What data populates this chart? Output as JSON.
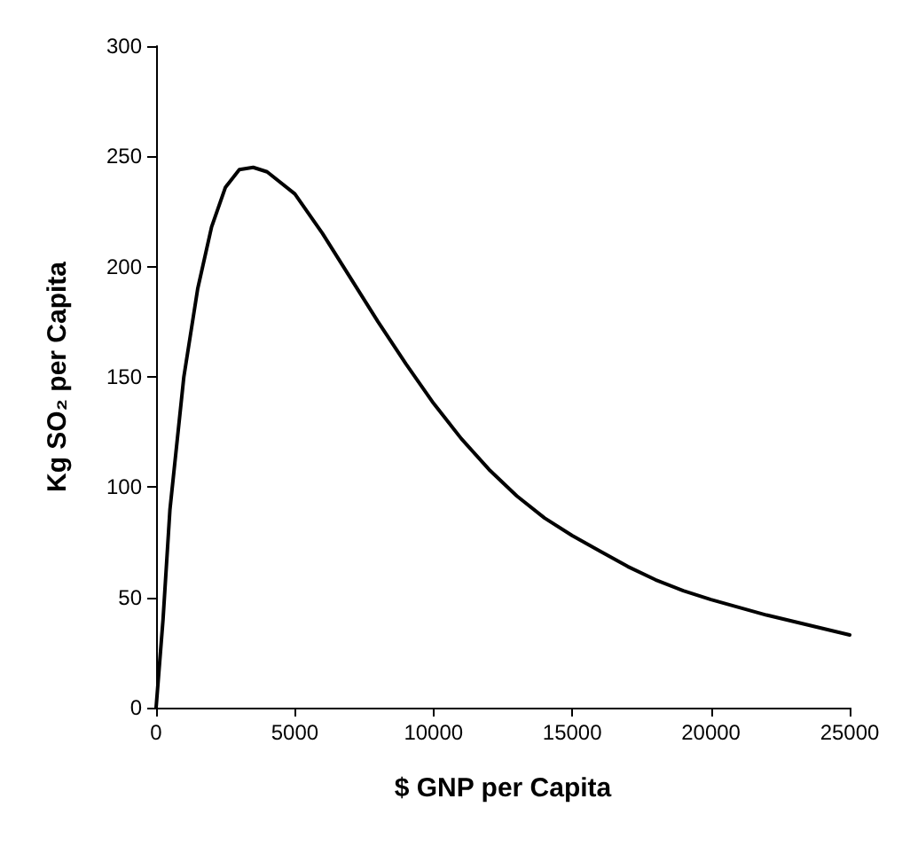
{
  "chart_data": {
    "type": "line",
    "xlabel": "$ GNP per Capita",
    "ylabel": "Kg SO₂ per Capita",
    "x": [
      0,
      250,
      500,
      1000,
      1500,
      2000,
      2500,
      3000,
      3500,
      4000,
      5000,
      6000,
      7000,
      8000,
      9000,
      10000,
      11000,
      12000,
      13000,
      14000,
      15000,
      16000,
      17000,
      18000,
      19000,
      20000,
      22000,
      25000
    ],
    "series": [
      {
        "color": "#000000",
        "values": [
          0,
          40,
          90,
          150,
          190,
          218,
          236,
          244,
          245,
          243,
          233,
          215,
          195,
          175,
          156,
          138,
          122,
          108,
          96,
          86,
          78,
          71,
          64,
          58,
          53,
          49,
          42,
          33
        ]
      }
    ],
    "xlim": [
      0,
      25000
    ],
    "xticks": [
      0,
      5000,
      10000,
      15000,
      20000,
      25000
    ],
    "ylim": [
      0,
      300
    ],
    "yticks": [
      0,
      50,
      100,
      150,
      200,
      250,
      300
    ],
    "grid": false,
    "marker": "none",
    "line_style": "solid"
  }
}
